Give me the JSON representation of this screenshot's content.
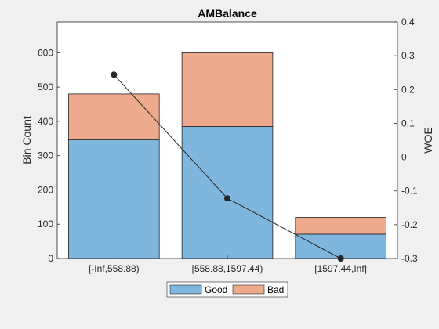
{
  "chart_data": {
    "type": "bar",
    "stacked": true,
    "title": "AMBalance",
    "categories": [
      "[-Inf,558.88)",
      "[558.88,1597.44)",
      "[1597.44,Inf]"
    ],
    "series": [
      {
        "name": "Good",
        "values": [
          346,
          385,
          71
        ],
        "color": "#7eb6de"
      },
      {
        "name": "Bad",
        "values": [
          134,
          215,
          49
        ],
        "color": "#eeaa8c"
      }
    ],
    "line_series": {
      "values": [
        0.244,
        -0.122,
        -0.3
      ],
      "axis": "right",
      "color": "#262626"
    },
    "ylabel": "Bin Count",
    "y2label": "WOE",
    "ylim": [
      0,
      690
    ],
    "yticks": [
      0,
      100,
      200,
      300,
      400,
      500,
      600
    ],
    "ytick_labels": [
      "0",
      "100",
      "200",
      "300",
      "400",
      "500",
      "600"
    ],
    "y2lim": [
      -0.3,
      0.4
    ],
    "y2ticks": [
      -0.3,
      -0.2,
      -0.1,
      0,
      0.1,
      0.2,
      0.3,
      0.4
    ],
    "y2tick_labels": [
      "-0.3",
      "-0.2",
      "-0.1",
      "0",
      "0.1",
      "0.2",
      "0.3",
      "0.4"
    ],
    "legend_placement": "bottom-center",
    "grid": false
  }
}
